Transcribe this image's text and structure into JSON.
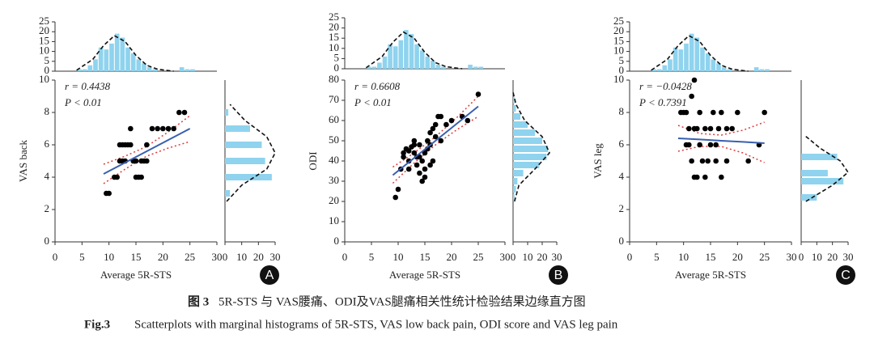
{
  "chart_data": [
    {
      "type": "scatter",
      "panel": "A",
      "xlabel": "Average 5R-STS",
      "ylabel": "VAS back",
      "annotation_r": "r = 0.4438",
      "annotation_p": "P < 0.01",
      "xlim": [
        0,
        30
      ],
      "xticks": [
        0,
        5,
        10,
        15,
        20,
        25,
        30
      ],
      "ylim": [
        0,
        10
      ],
      "yticks": [
        0,
        2,
        4,
        6,
        8,
        10
      ],
      "point_color": "#000000",
      "fit_color": "#3a5fb0",
      "ci_color": "#e03a3a",
      "hist_color": "#8fd3ee",
      "x": [
        9.5,
        10,
        11,
        11.5,
        12,
        12.5,
        12,
        12.5,
        13,
        13.5,
        14,
        14,
        14.5,
        15,
        15,
        15.5,
        16,
        16,
        16.5,
        17,
        17,
        18,
        19,
        20,
        21,
        22,
        23,
        24,
        13
      ],
      "y": [
        3,
        3,
        4,
        4,
        5,
        5,
        6,
        6,
        6,
        6,
        6,
        7,
        5,
        5,
        4,
        4,
        4,
        5,
        5,
        5,
        6,
        7,
        7,
        7,
        7,
        7,
        8,
        8,
        5
      ],
      "fit_x": [
        9,
        13,
        17,
        21,
        25
      ],
      "fit_y": [
        4.2,
        4.9,
        5.6,
        6.3,
        7.0
      ],
      "ci_upper": [
        4.8,
        5.3,
        5.9,
        6.8,
        7.8
      ],
      "ci_lower": [
        3.6,
        4.5,
        5.3,
        5.8,
        6.2
      ],
      "top_hist": {
        "bins": [
          4,
          5,
          6,
          7,
          8,
          9,
          10,
          11,
          12,
          13,
          14,
          15,
          16,
          17,
          18,
          19,
          20,
          21,
          22,
          23,
          24,
          25,
          26
        ],
        "counts": [
          1,
          1,
          3,
          6,
          12,
          11,
          14,
          19,
          17,
          12,
          9,
          6,
          4,
          2,
          1,
          0,
          0,
          0,
          0,
          2,
          1,
          1
        ],
        "ylim": [
          0,
          25
        ],
        "yticks": [
          0,
          5,
          10,
          15,
          20,
          25
        ],
        "curve_x": [
          4,
          7,
          9,
          11,
          13,
          15,
          17,
          19,
          22
        ],
        "curve_y": [
          0.5,
          6,
          13,
          18,
          15,
          8,
          3,
          1,
          0
        ]
      },
      "right_hist": {
        "bins": [
          2.75,
          3.25,
          3.75,
          4.25,
          4.75,
          5.25,
          5.75,
          6.25,
          6.75,
          7.25,
          7.75,
          8.25
        ],
        "counts": [
          3,
          0,
          28,
          0,
          24,
          0,
          22,
          0,
          15,
          0,
          2
        ],
        "xlim": [
          0,
          30
        ],
        "xticks": [
          0,
          10,
          20,
          30
        ],
        "curve_y": [
          2.5,
          3.5,
          4.5,
          5.5,
          6.5,
          7.5,
          8.5
        ],
        "curve_x": [
          1,
          10,
          25,
          30,
          25,
          12,
          3
        ]
      }
    },
    {
      "type": "scatter",
      "panel": "B",
      "xlabel": "Average 5R-STS",
      "ylabel": "ODI",
      "annotation_r": "r = 0.6608",
      "annotation_p": "P < 0.01",
      "xlim": [
        0,
        30
      ],
      "xticks": [
        0,
        5,
        10,
        15,
        20,
        25,
        30
      ],
      "ylim": [
        0,
        80
      ],
      "yticks": [
        0,
        10,
        20,
        30,
        40,
        50,
        60,
        70,
        80
      ],
      "point_color": "#000000",
      "fit_color": "#3a5fb0",
      "ci_color": "#e03a3a",
      "hist_color": "#8fd3ee",
      "x": [
        9.5,
        10,
        10.5,
        11,
        11,
        11.5,
        12,
        12,
        12.5,
        13,
        13,
        13.5,
        13.5,
        14,
        14,
        14.5,
        14.5,
        15,
        15,
        15,
        15.5,
        15.5,
        16,
        16,
        16,
        16.5,
        16.5,
        17,
        17,
        17.5,
        18,
        18,
        19,
        20,
        22,
        23,
        25,
        12,
        13,
        14
      ],
      "y": [
        22,
        26,
        36,
        42,
        44,
        46,
        45,
        40,
        47,
        44,
        48,
        38,
        42,
        34,
        42,
        30,
        40,
        32,
        36,
        44,
        46,
        50,
        38,
        48,
        54,
        40,
        56,
        52,
        58,
        62,
        50,
        62,
        58,
        60,
        62,
        60,
        73,
        36,
        50,
        48
      ],
      "fit_x": [
        9,
        13,
        17,
        21,
        25
      ],
      "fit_y": [
        33,
        41.5,
        50,
        58.5,
        67
      ],
      "ci_upper": [
        37,
        44,
        52,
        61.5,
        72
      ],
      "ci_lower": [
        29,
        39,
        48,
        55.5,
        62
      ],
      "top_hist": {
        "bins": [
          4,
          5,
          6,
          7,
          8,
          9,
          10,
          11,
          12,
          13,
          14,
          15,
          16,
          17,
          18,
          19,
          20,
          21,
          22,
          23,
          24,
          25,
          26
        ],
        "counts": [
          1,
          1,
          3,
          6,
          12,
          11,
          14,
          19,
          17,
          12,
          9,
          6,
          4,
          2,
          1,
          0,
          0,
          0,
          0,
          2,
          1,
          1
        ],
        "ylim": [
          0,
          25
        ],
        "yticks": [
          0,
          5,
          10,
          15,
          20,
          25
        ],
        "curve_x": [
          4,
          7,
          9,
          11,
          13,
          15,
          17,
          19,
          22
        ],
        "curve_y": [
          0.5,
          6,
          13,
          18,
          15,
          8,
          3,
          1,
          0
        ]
      },
      "right_hist": {
        "bins": [
          20,
          24,
          28,
          32,
          36,
          40,
          44,
          48,
          52,
          56,
          60,
          64,
          68,
          72
        ],
        "counts": [
          1,
          2,
          3,
          7,
          18,
          23,
          24,
          20,
          15,
          10,
          5,
          2,
          1
        ],
        "xlim": [
          0,
          30
        ],
        "xticks": [
          0,
          10,
          20,
          30
        ],
        "curve_y": [
          20,
          28,
          36,
          44,
          52,
          60,
          68,
          74
        ],
        "curve_x": [
          1,
          4,
          15,
          25,
          20,
          8,
          2,
          0
        ]
      }
    },
    {
      "type": "scatter",
      "panel": "C",
      "xlabel": "Average 5R-STS",
      "ylabel": "VAS leg",
      "annotation_r": "r = −0.0428",
      "annotation_p": "P < 0.7391",
      "xlim": [
        0,
        30
      ],
      "xticks": [
        0,
        5,
        10,
        15,
        20,
        25,
        30
      ],
      "ylim": [
        0,
        10
      ],
      "yticks": [
        0,
        2,
        4,
        6,
        8,
        10
      ],
      "point_color": "#000000",
      "fit_color": "#3a5fb0",
      "ci_color": "#e03a3a",
      "hist_color": "#8fd3ee",
      "x": [
        9.5,
        10,
        10.5,
        11,
        11,
        11.5,
        11.5,
        12,
        12,
        12.5,
        12,
        13,
        13,
        13.5,
        14,
        14,
        14.5,
        15,
        15,
        15.5,
        16,
        16,
        16.5,
        17,
        17,
        18,
        18,
        19,
        20,
        22,
        24,
        25,
        12.5,
        10.5
      ],
      "y": [
        8,
        8,
        8,
        7,
        6,
        5,
        9,
        10,
        4,
        4,
        7,
        6,
        8,
        5,
        7,
        4,
        5,
        6,
        7,
        8,
        5,
        6,
        7,
        4,
        8,
        5,
        7,
        7,
        8,
        5,
        6,
        8,
        7,
        6
      ],
      "fit_x": [
        9,
        13,
        17,
        21,
        25
      ],
      "fit_y": [
        6.4,
        6.33,
        6.25,
        6.18,
        6.1
      ],
      "ci_upper": [
        7.2,
        6.7,
        6.6,
        6.9,
        7.4
      ],
      "ci_lower": [
        5.6,
        5.9,
        5.9,
        5.5,
        4.9
      ],
      "top_hist": {
        "bins": [
          4,
          5,
          6,
          7,
          8,
          9,
          10,
          11,
          12,
          13,
          14,
          15,
          16,
          17,
          18,
          19,
          20,
          21,
          22,
          23,
          24,
          25,
          26
        ],
        "counts": [
          1,
          1,
          3,
          6,
          12,
          11,
          14,
          19,
          17,
          12,
          9,
          6,
          4,
          2,
          1,
          0,
          0,
          0,
          0,
          2,
          1,
          1
        ],
        "ylim": [
          0,
          25
        ],
        "yticks": [
          0,
          5,
          10,
          15,
          20,
          25
        ],
        "curve_x": [
          4,
          7,
          9,
          11,
          13,
          15,
          17,
          19,
          22
        ],
        "curve_y": [
          0.5,
          6,
          13,
          18,
          15,
          8,
          3,
          1,
          0
        ]
      },
      "right_hist": {
        "bins": [
          2.5,
          3,
          3.5,
          4,
          4.5,
          5,
          5.5
        ],
        "counts": [
          10,
          0,
          27,
          17,
          0,
          23
        ],
        "xlim": [
          0,
          30
        ],
        "xticks": [
          0,
          10,
          20,
          30
        ],
        "curve_y": [
          2.5,
          3.5,
          4.3,
          5,
          5.8,
          6.6
        ],
        "curve_x": [
          3,
          20,
          30,
          25,
          12,
          2
        ]
      }
    }
  ],
  "caption_cn": {
    "label": "图 3",
    "text": "5R-STS 与 VAS腰痛、ODI及VAS腿痛相关性统计检验结果边缘直方图"
  },
  "caption_en": {
    "label": "Fig.3",
    "text": "Scatterplots with marginal histograms of 5R-STS, VAS low back pain, ODI score and VAS leg pain"
  }
}
